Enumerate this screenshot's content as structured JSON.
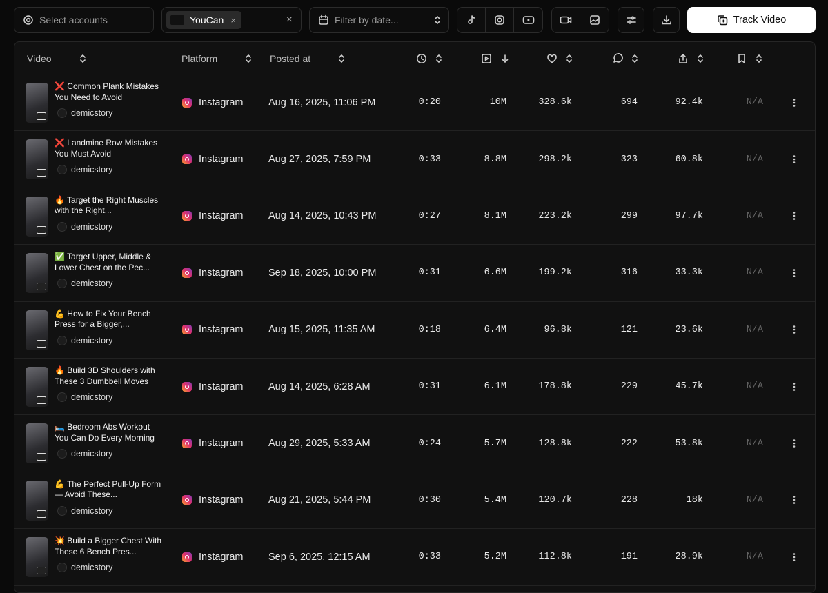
{
  "toolbar": {
    "account_placeholder": "Select accounts",
    "account_chip": "YouCan",
    "date_placeholder": "Filter by date...",
    "track_button": "Track Video"
  },
  "table": {
    "headers": {
      "video": "Video",
      "platform": "Platform",
      "posted_at": "Posted at"
    },
    "rows": [
      {
        "title": "❌ Common Plank Mistakes You Need to Avoid",
        "author": "demicstory",
        "platform": "Instagram",
        "posted_at": "Aug 16, 2025, 11:06 PM",
        "duration": "0:20",
        "views": "10M",
        "likes": "328.6k",
        "comments": "694",
        "shares": "92.4k",
        "saves": "N/A"
      },
      {
        "title": "❌ Landmine Row Mistakes You Must Avoid",
        "author": "demicstory",
        "platform": "Instagram",
        "posted_at": "Aug 27, 2025, 7:59 PM",
        "duration": "0:33",
        "views": "8.8M",
        "likes": "298.2k",
        "comments": "323",
        "shares": "60.8k",
        "saves": "N/A"
      },
      {
        "title": "🔥 Target the Right Muscles with the Right...",
        "author": "demicstory",
        "platform": "Instagram",
        "posted_at": "Aug 14, 2025, 10:43 PM",
        "duration": "0:27",
        "views": "8.1M",
        "likes": "223.2k",
        "comments": "299",
        "shares": "97.7k",
        "saves": "N/A"
      },
      {
        "title": "✅ Target Upper, Middle & Lower Chest on the Pec...",
        "author": "demicstory",
        "platform": "Instagram",
        "posted_at": "Sep 18, 2025, 10:00 PM",
        "duration": "0:31",
        "views": "6.6M",
        "likes": "199.2k",
        "comments": "316",
        "shares": "33.3k",
        "saves": "N/A"
      },
      {
        "title": "💪 How to Fix Your Bench Press for a Bigger,...",
        "author": "demicstory",
        "platform": "Instagram",
        "posted_at": "Aug 15, 2025, 11:35 AM",
        "duration": "0:18",
        "views": "6.4M",
        "likes": "96.8k",
        "comments": "121",
        "shares": "23.6k",
        "saves": "N/A"
      },
      {
        "title": "🔥 Build 3D Shoulders with These 3 Dumbbell Moves",
        "author": "demicstory",
        "platform": "Instagram",
        "posted_at": "Aug 14, 2025, 6:28 AM",
        "duration": "0:31",
        "views": "6.1M",
        "likes": "178.8k",
        "comments": "229",
        "shares": "45.7k",
        "saves": "N/A"
      },
      {
        "title": "🛌 Bedroom Abs Workout You Can Do Every Morning",
        "author": "demicstory",
        "platform": "Instagram",
        "posted_at": "Aug 29, 2025, 5:33 AM",
        "duration": "0:24",
        "views": "5.7M",
        "likes": "128.8k",
        "comments": "222",
        "shares": "53.8k",
        "saves": "N/A"
      },
      {
        "title": "💪 The Perfect Pull-Up Form — Avoid These...",
        "author": "demicstory",
        "platform": "Instagram",
        "posted_at": "Aug 21, 2025, 5:44 PM",
        "duration": "0:30",
        "views": "5.4M",
        "likes": "120.7k",
        "comments": "228",
        "shares": "18k",
        "saves": "N/A"
      },
      {
        "title": "💥 Build a Bigger Chest With These 6 Bench Pres...",
        "author": "demicstory",
        "platform": "Instagram",
        "posted_at": "Sep 6, 2025, 12:15 AM",
        "duration": "0:33",
        "views": "5.2M",
        "likes": "112.8k",
        "comments": "191",
        "shares": "28.9k",
        "saves": "N/A"
      }
    ]
  }
}
